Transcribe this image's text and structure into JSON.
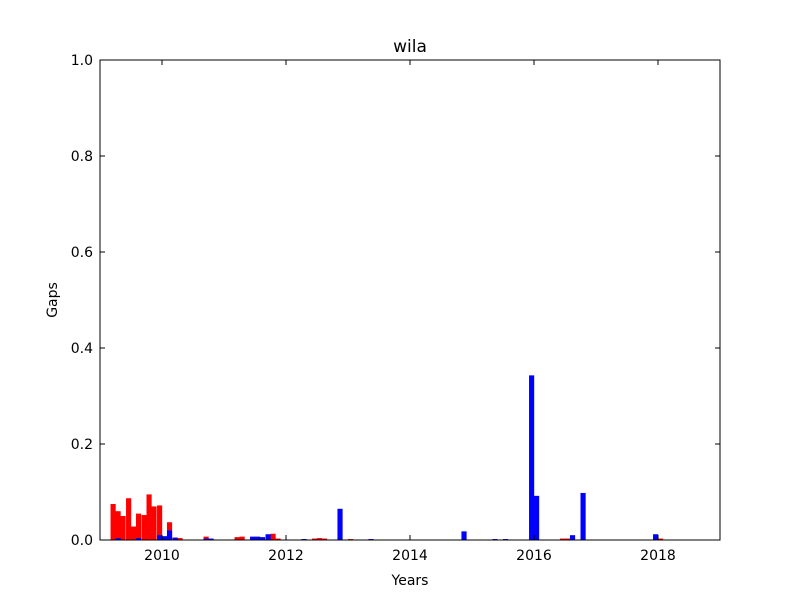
{
  "chart_data": {
    "type": "bar",
    "title": "wila",
    "xlabel": "Years",
    "ylabel": "Gaps",
    "xlim": [
      2009.0,
      2019.0
    ],
    "ylim": [
      0.0,
      1.0
    ],
    "grid": false,
    "x_ticks": [
      2010,
      2012,
      2014,
      2016,
      2018
    ],
    "x_tick_labels": [
      "2010",
      "2012",
      "2014",
      "2016",
      "2018"
    ],
    "y_ticks": [
      0.0,
      0.2,
      0.4,
      0.6,
      0.8,
      1.0
    ],
    "y_tick_labels": [
      "0.0",
      "0.2",
      "0.4",
      "0.6",
      "0.8",
      "1.0"
    ],
    "bar_width_years": 0.083,
    "series": [
      {
        "color": "#ff0000",
        "points": [
          {
            "x": 2009.17,
            "y": 0.075
          },
          {
            "x": 2009.25,
            "y": 0.06
          },
          {
            "x": 2009.33,
            "y": 0.05
          },
          {
            "x": 2009.42,
            "y": 0.087
          },
          {
            "x": 2009.5,
            "y": 0.028
          },
          {
            "x": 2009.58,
            "y": 0.055
          },
          {
            "x": 2009.67,
            "y": 0.052
          },
          {
            "x": 2009.75,
            "y": 0.095
          },
          {
            "x": 2009.83,
            "y": 0.07
          },
          {
            "x": 2009.92,
            "y": 0.072
          },
          {
            "x": 2010.08,
            "y": 0.037
          },
          {
            "x": 2010.17,
            "y": 0.005
          },
          {
            "x": 2010.25,
            "y": 0.004
          },
          {
            "x": 2010.67,
            "y": 0.007
          },
          {
            "x": 2011.17,
            "y": 0.006
          },
          {
            "x": 2011.25,
            "y": 0.007
          },
          {
            "x": 2011.75,
            "y": 0.013
          },
          {
            "x": 2011.83,
            "y": 0.003
          },
          {
            "x": 2012.42,
            "y": 0.003
          },
          {
            "x": 2012.5,
            "y": 0.004
          },
          {
            "x": 2012.58,
            "y": 0.003
          },
          {
            "x": 2013.0,
            "y": 0.002
          },
          {
            "x": 2016.42,
            "y": 0.003
          },
          {
            "x": 2016.5,
            "y": 0.003
          },
          {
            "x": 2018.0,
            "y": 0.003
          }
        ]
      },
      {
        "color": "#0000ff",
        "points": [
          {
            "x": 2009.25,
            "y": 0.004
          },
          {
            "x": 2009.58,
            "y": 0.004
          },
          {
            "x": 2009.92,
            "y": 0.01
          },
          {
            "x": 2010.0,
            "y": 0.008
          },
          {
            "x": 2010.08,
            "y": 0.02
          },
          {
            "x": 2010.17,
            "y": 0.005
          },
          {
            "x": 2010.67,
            "y": 0.003
          },
          {
            "x": 2010.75,
            "y": 0.003
          },
          {
            "x": 2011.42,
            "y": 0.007
          },
          {
            "x": 2011.5,
            "y": 0.007
          },
          {
            "x": 2011.58,
            "y": 0.006
          },
          {
            "x": 2011.67,
            "y": 0.012
          },
          {
            "x": 2012.25,
            "y": 0.002
          },
          {
            "x": 2012.83,
            "y": 0.065
          },
          {
            "x": 2013.33,
            "y": 0.002
          },
          {
            "x": 2014.83,
            "y": 0.018
          },
          {
            "x": 2015.33,
            "y": 0.002
          },
          {
            "x": 2015.5,
            "y": 0.002
          },
          {
            "x": 2015.92,
            "y": 0.343
          },
          {
            "x": 2016.0,
            "y": 0.092
          },
          {
            "x": 2016.58,
            "y": 0.01
          },
          {
            "x": 2016.75,
            "y": 0.098
          },
          {
            "x": 2017.92,
            "y": 0.012
          }
        ]
      }
    ]
  }
}
